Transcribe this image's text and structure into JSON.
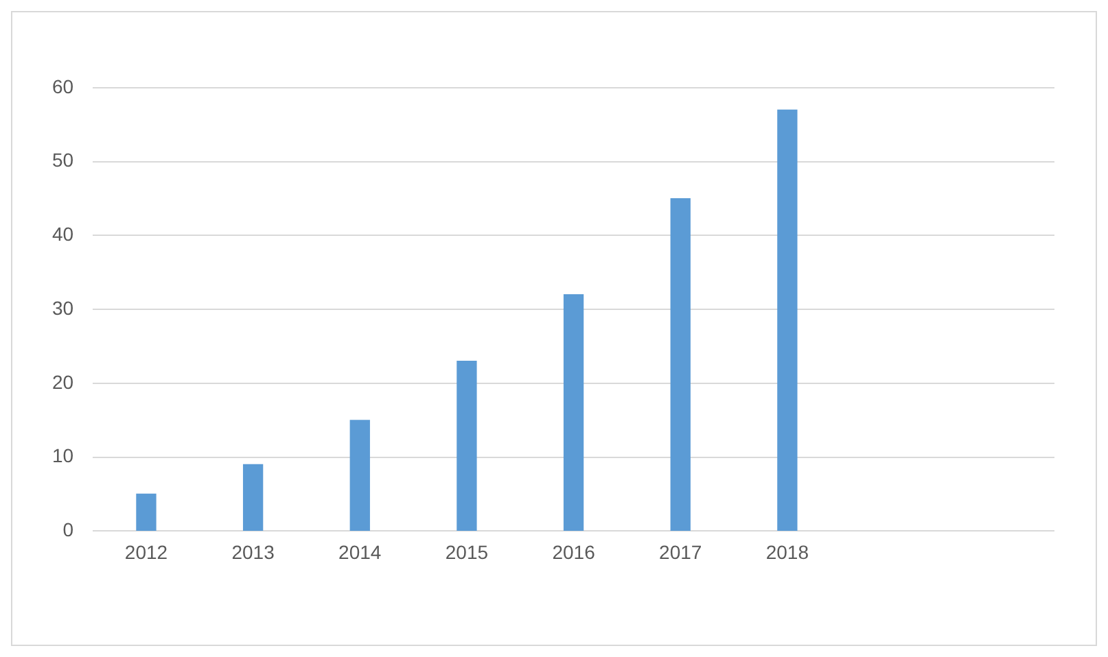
{
  "chart_data": {
    "type": "bar",
    "categories": [
      "2012",
      "2013",
      "2014",
      "2015",
      "2016",
      "2017",
      "2018",
      null,
      null
    ],
    "values": [
      5,
      9,
      15,
      23,
      32,
      45,
      57,
      null,
      null
    ],
    "color": "#5b9bd5",
    "ylim": [
      0,
      60
    ],
    "yticks": [
      0,
      10,
      20,
      30,
      40,
      50,
      60
    ],
    "grid": "y",
    "legend": false
  }
}
